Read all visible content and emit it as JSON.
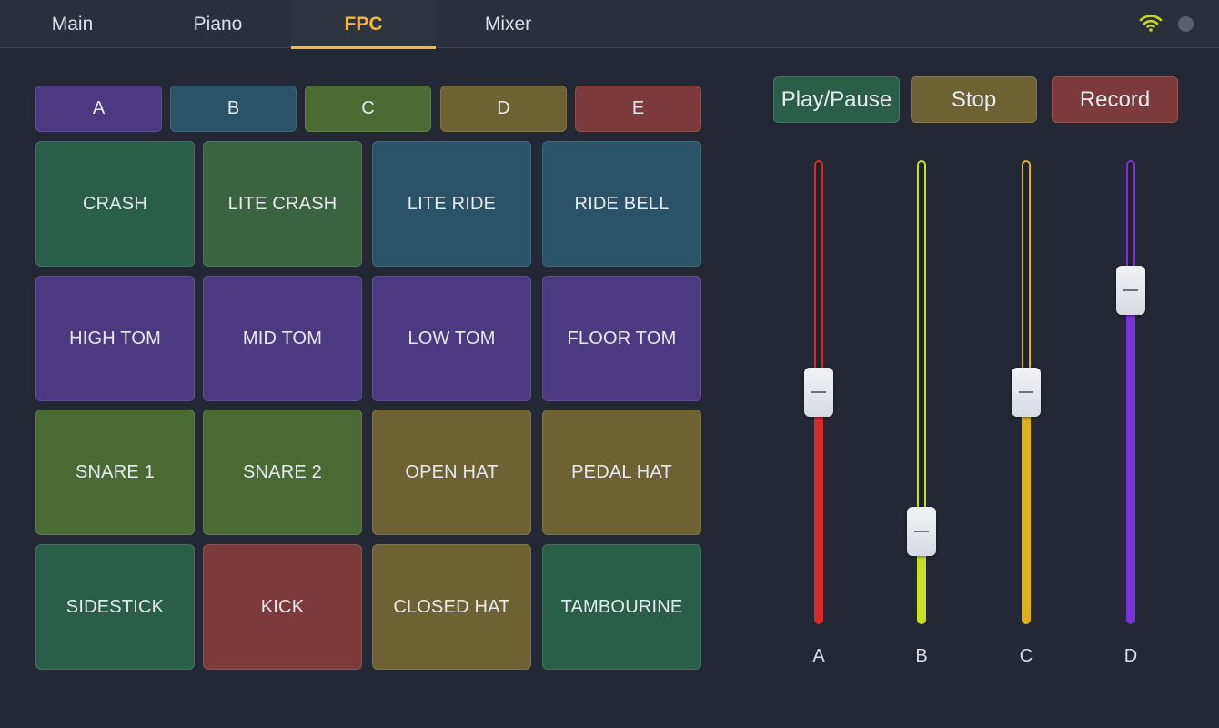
{
  "tabs": [
    {
      "label": "Main",
      "active": false
    },
    {
      "label": "Piano",
      "active": false
    },
    {
      "label": "FPC",
      "active": true
    },
    {
      "label": "Mixer",
      "active": false
    }
  ],
  "status": {
    "wifi_icon": "wifi-icon",
    "wifi_color": "#c8d82a",
    "indicator_color": "#5a606b"
  },
  "banks": [
    {
      "label": "A",
      "color": "#4b3a82"
    },
    {
      "label": "B",
      "color": "#2a5268"
    },
    {
      "label": "C",
      "color": "#4a6a33"
    },
    {
      "label": "D",
      "color": "#6c6234"
    },
    {
      "label": "E",
      "color": "#7d3a3a"
    }
  ],
  "pads": [
    [
      {
        "label": "CRASH",
        "color": "#2a5e48"
      },
      {
        "label": "LITE CRASH",
        "color": "#3a6440"
      },
      {
        "label": "LITE RIDE",
        "color": "#2a5268"
      },
      {
        "label": "RIDE BELL",
        "color": "#2a5268"
      }
    ],
    [
      {
        "label": "HIGH TOM",
        "color": "#4b3a82"
      },
      {
        "label": "MID TOM",
        "color": "#4b3a82"
      },
      {
        "label": "LOW TOM",
        "color": "#4b3a82"
      },
      {
        "label": "FLOOR TOM",
        "color": "#4b3a82"
      }
    ],
    [
      {
        "label": "SNARE 1",
        "color": "#4a6a33"
      },
      {
        "label": "SNARE 2",
        "color": "#4a6a33"
      },
      {
        "label": "OPEN HAT",
        "color": "#6c6234"
      },
      {
        "label": "PEDAL HAT",
        "color": "#6c6234"
      }
    ],
    [
      {
        "label": "SIDESTICK",
        "color": "#2a5e48"
      },
      {
        "label": "KICK",
        "color": "#7d3a3a"
      },
      {
        "label": "CLOSED HAT",
        "color": "#6c6234"
      },
      {
        "label": "TAMBOURINE",
        "color": "#2a5e48"
      }
    ]
  ],
  "transport": [
    {
      "label": "Play/Pause",
      "color": "#2a5e48"
    },
    {
      "label": "Stop",
      "color": "#6c6234"
    },
    {
      "label": "Record",
      "color": "#7d3a3a"
    }
  ],
  "faders": [
    {
      "label": "A",
      "color": "#d62a2a",
      "level": 0.5
    },
    {
      "label": "B",
      "color": "#c8e02a",
      "level": 0.2
    },
    {
      "label": "C",
      "color": "#e0b21a",
      "level": 0.5
    },
    {
      "label": "D",
      "color": "#7a32d8",
      "level": 0.72
    }
  ]
}
